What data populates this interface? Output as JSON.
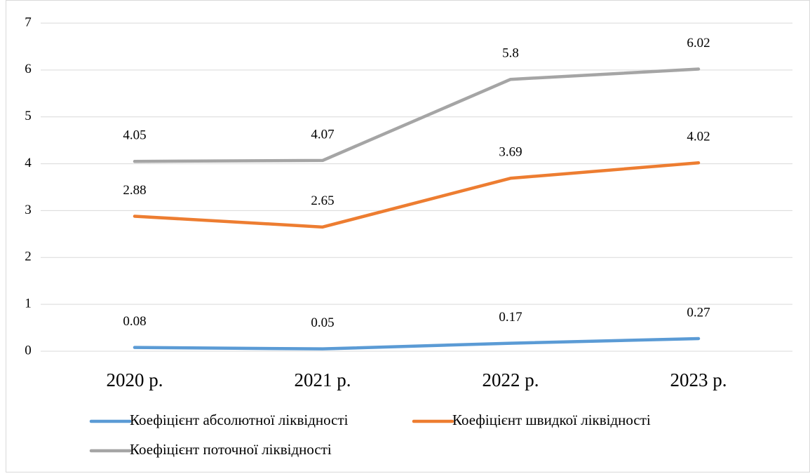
{
  "chart_data": {
    "type": "line",
    "categories": [
      "2020 р.",
      "2021 р.",
      "2022 р.",
      "2023 р."
    ],
    "series": [
      {
        "name": "Коефіцієнт абсолютної ліквідності",
        "color": "#5b9bd5",
        "values": [
          0.08,
          0.05,
          0.17,
          0.27
        ]
      },
      {
        "name": "Коефіцієнт швидкої ліквідності",
        "color": "#ed7d31",
        "values": [
          2.88,
          2.65,
          3.69,
          4.02
        ]
      },
      {
        "name": "Коефіцієнт поточної ліквідності",
        "color": "#a5a5a5",
        "values": [
          4.05,
          4.07,
          5.8,
          6.02
        ]
      }
    ],
    "ylim": [
      0,
      7
    ],
    "yticks": [
      0,
      1,
      2,
      3,
      4,
      5,
      6,
      7
    ],
    "grid": true,
    "legend": "bottom"
  }
}
